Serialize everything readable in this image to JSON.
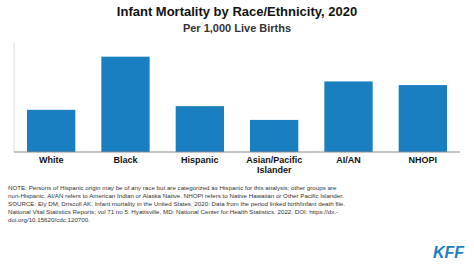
{
  "chart_data": {
    "type": "bar",
    "title": "Infant Mortality by Race/Ethnicity, 2020",
    "subtitle": "Per 1,000 Live Births",
    "categories": [
      "White",
      "Black",
      "Hispanic",
      "Asian/Pacific\nIslander",
      "AI/AN",
      "NHOPI"
    ],
    "values": [
      4.6,
      10.4,
      5.0,
      3.5,
      7.7,
      7.3
    ],
    "color": "#1a7fc1",
    "ylim": [
      0,
      12
    ],
    "grid": false,
    "tick_labels": "x",
    "annotations": [
      "NOTE: Persons of Hispanic origin may be of any race but are categorized as Hispanic for this analysis; other groups are\nnon-Hispanic. AI/AN refers to American Indian or Alaska Native. NHOPI refers to Native Hawaiian or Other Pacific Islander.\nSOURCE: Ely DM, Driscoll AK. Infant mortality in the United States, 2020: Data from the period linked birth/infant death file.\nNational Vital Statistics Reports; vol 71 no 5. Hyattsville, MD: National Center for Health Statistics. 2022. DOI: https://dx.-\ndoi.org/10.15620/cdc:120700.",
      "KFF"
    ]
  }
}
